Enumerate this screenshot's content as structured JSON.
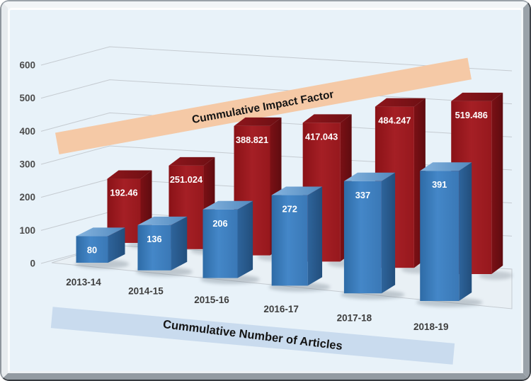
{
  "chart_data": {
    "type": "bar",
    "projection": "3d-perspective",
    "title": "",
    "categories": [
      "2013-14",
      "2014-15",
      "2015-16",
      "2016-17",
      "2017-18",
      "2018-19"
    ],
    "series": [
      {
        "name": "Cummulative Number of Articles",
        "values": [
          80,
          136,
          206,
          272,
          337,
          391
        ],
        "labels": [
          "80",
          "136",
          "206",
          "272",
          "337",
          "391"
        ],
        "color": "#3A78B6",
        "label_color": "#ffffff"
      },
      {
        "name": "Cummulative Impact Factor",
        "values": [
          192.46,
          251.024,
          388.821,
          417.043,
          484.247,
          519.486
        ],
        "labels": [
          "192.46",
          "251.024",
          "388.821",
          "417.043",
          "484.247",
          "519.486"
        ],
        "color": "#9A191F",
        "label_color": "#ffffff"
      }
    ],
    "y_axis": {
      "min": 0,
      "max": 600,
      "step": 100,
      "ticks": [
        "0",
        "100",
        "200",
        "300",
        "400",
        "500",
        "600"
      ]
    },
    "grid": true,
    "legend_position": "floating-banners",
    "banners": [
      {
        "text": "Cummulative Impact Factor",
        "color": "#F5C9A6",
        "text_color": "#141414"
      },
      {
        "text": "Cummulative Number of Articles",
        "color": "#C9DBEE",
        "text_color": "#141414"
      }
    ],
    "background_color": "#E8F2F9",
    "gridline_color": "#C5CBD1",
    "floor_color": "#E9F0F5"
  }
}
